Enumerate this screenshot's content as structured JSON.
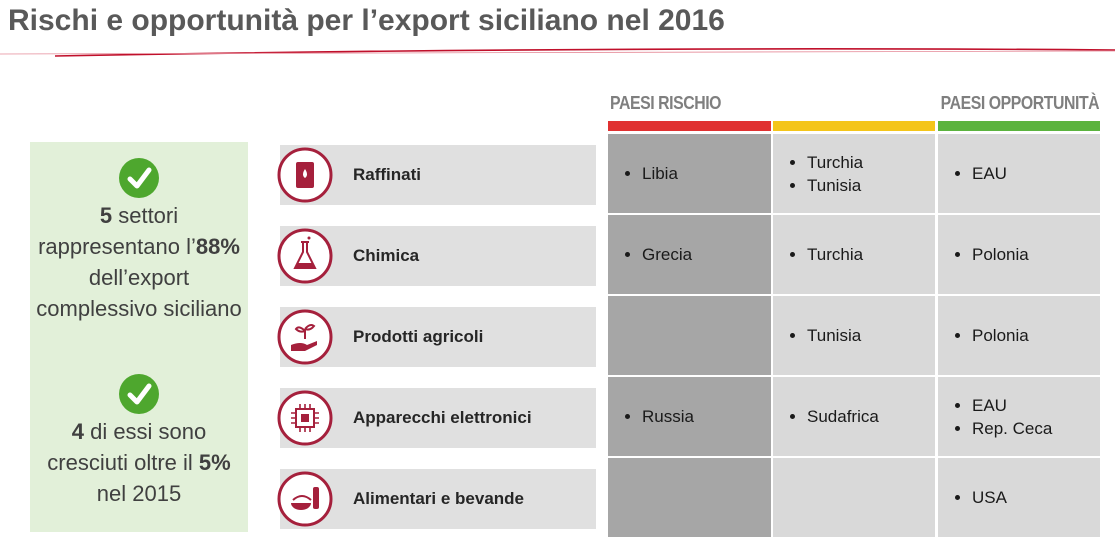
{
  "header": {
    "title": "Rischi e opportunità per l’export siciliano nel 2016"
  },
  "callouts": [
    {
      "parts": [
        {
          "text": "5",
          "bold": true
        },
        {
          "text": " settori rappresentano l’"
        },
        {
          "text": "88%",
          "bold": true
        },
        {
          "text": " dell’export complessivo siciliano"
        }
      ]
    },
    {
      "parts": [
        {
          "text": "4",
          "bold": true
        },
        {
          "text": " di essi sono cresciuti oltre il "
        },
        {
          "text": "5%",
          "bold": true
        },
        {
          "text": " nel 2015"
        }
      ]
    }
  ],
  "table": {
    "headers": {
      "risk": "PAESI RISCHIO",
      "opportunity": "PAESI OPPORTUNITÀ"
    },
    "rows": [
      {
        "sector": "Raffinati",
        "risk": [
          "Libia"
        ],
        "neutral": [
          "Turchia",
          "Tunisia"
        ],
        "opportunity": [
          "EAU"
        ]
      },
      {
        "sector": "Chimica",
        "risk": [
          "Grecia"
        ],
        "neutral": [
          "Turchia"
        ],
        "opportunity": [
          "Polonia"
        ]
      },
      {
        "sector": "Prodotti agricoli",
        "risk": [],
        "neutral": [
          "Tunisia"
        ],
        "opportunity": [
          "Polonia"
        ]
      },
      {
        "sector": "Apparecchi elettronici",
        "risk": [
          "Russia"
        ],
        "neutral": [
          "Sudafrica"
        ],
        "opportunity": [
          "EAU",
          "Rep. Ceca"
        ]
      },
      {
        "sector": "Alimentari e bevande",
        "risk": [],
        "neutral": [],
        "opportunity": [
          "USA"
        ]
      }
    ]
  }
}
